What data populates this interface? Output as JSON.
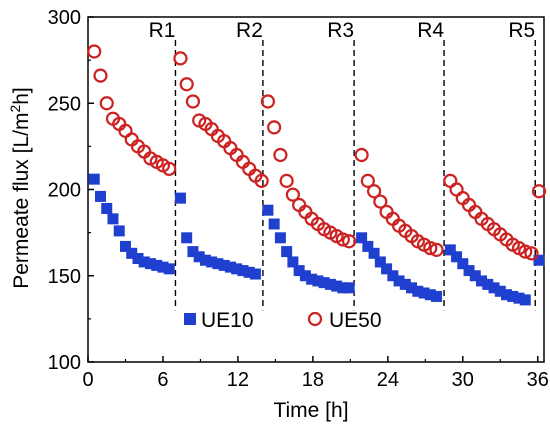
{
  "chart_data": {
    "type": "scatter",
    "xlabel": "Time [h]",
    "ylabel": "Permeate flux [L/m²h]",
    "ylabel_parts": {
      "main": "Permeate flux [L/m",
      "sup": "2",
      "tail": "h]"
    },
    "xlim": [
      0,
      36.5
    ],
    "ylim": [
      100,
      300
    ],
    "xticks": [
      0,
      6,
      12,
      18,
      24,
      30,
      36
    ],
    "yticks": [
      100,
      150,
      200,
      250,
      300
    ],
    "grid": false,
    "legend_position": "bottom-center",
    "run_markers": [
      {
        "label": "R1",
        "x": 7.0
      },
      {
        "label": "R2",
        "x": 14.0
      },
      {
        "label": "R3",
        "x": 21.3
      },
      {
        "label": "R4",
        "x": 28.5
      },
      {
        "label": "R5",
        "x": 35.8
      }
    ],
    "series": [
      {
        "name": "UE10",
        "marker": "filled-square",
        "color": "#1f3fcf",
        "points": [
          [
            0.5,
            206
          ],
          [
            1.0,
            196
          ],
          [
            1.5,
            189
          ],
          [
            2.0,
            183
          ],
          [
            2.5,
            176
          ],
          [
            3.0,
            167
          ],
          [
            3.5,
            163
          ],
          [
            4.0,
            160
          ],
          [
            4.5,
            158
          ],
          [
            5.0,
            157
          ],
          [
            5.5,
            156
          ],
          [
            6.0,
            155
          ],
          [
            6.5,
            154
          ],
          [
            7.4,
            195
          ],
          [
            7.9,
            172
          ],
          [
            8.4,
            164
          ],
          [
            8.9,
            161
          ],
          [
            9.4,
            159
          ],
          [
            9.9,
            158
          ],
          [
            10.4,
            157
          ],
          [
            10.9,
            156
          ],
          [
            11.4,
            155
          ],
          [
            11.9,
            154
          ],
          [
            12.4,
            153
          ],
          [
            12.9,
            152
          ],
          [
            13.4,
            151
          ],
          [
            14.4,
            188
          ],
          [
            14.9,
            180
          ],
          [
            15.4,
            172
          ],
          [
            15.9,
            164
          ],
          [
            16.4,
            158
          ],
          [
            16.9,
            153
          ],
          [
            17.4,
            150
          ],
          [
            17.9,
            148
          ],
          [
            18.4,
            147
          ],
          [
            18.9,
            146
          ],
          [
            19.4,
            145
          ],
          [
            19.9,
            144
          ],
          [
            20.4,
            143
          ],
          [
            20.9,
            143
          ],
          [
            21.9,
            172
          ],
          [
            22.4,
            167
          ],
          [
            22.9,
            163
          ],
          [
            23.4,
            158
          ],
          [
            23.9,
            154
          ],
          [
            24.4,
            150
          ],
          [
            24.9,
            147
          ],
          [
            25.4,
            145
          ],
          [
            25.9,
            143
          ],
          [
            26.4,
            141
          ],
          [
            26.9,
            140
          ],
          [
            27.4,
            139
          ],
          [
            27.9,
            138
          ],
          [
            29.0,
            165
          ],
          [
            29.5,
            161
          ],
          [
            30.0,
            157
          ],
          [
            30.5,
            153
          ],
          [
            31.0,
            150
          ],
          [
            31.5,
            147
          ],
          [
            32.0,
            145
          ],
          [
            32.5,
            143
          ],
          [
            33.0,
            141
          ],
          [
            33.5,
            139
          ],
          [
            34.0,
            138
          ],
          [
            34.5,
            137
          ],
          [
            35.0,
            136
          ],
          [
            36.1,
            159
          ]
        ]
      },
      {
        "name": "UE50",
        "marker": "open-circle",
        "color": "#cc2222",
        "points": [
          [
            0.5,
            280
          ],
          [
            1.0,
            266
          ],
          [
            1.5,
            250
          ],
          [
            2.0,
            241
          ],
          [
            2.5,
            238
          ],
          [
            3.0,
            234
          ],
          [
            3.5,
            229
          ],
          [
            4.0,
            225
          ],
          [
            4.5,
            222
          ],
          [
            5.0,
            218
          ],
          [
            5.5,
            216
          ],
          [
            6.0,
            214
          ],
          [
            6.5,
            212
          ],
          [
            7.4,
            276
          ],
          [
            7.9,
            261
          ],
          [
            8.4,
            251
          ],
          [
            8.9,
            240
          ],
          [
            9.4,
            238
          ],
          [
            9.9,
            235
          ],
          [
            10.4,
            231
          ],
          [
            10.9,
            228
          ],
          [
            11.4,
            224
          ],
          [
            11.9,
            220
          ],
          [
            12.4,
            216
          ],
          [
            12.9,
            212
          ],
          [
            13.4,
            208
          ],
          [
            13.9,
            205
          ],
          [
            14.4,
            251
          ],
          [
            14.9,
            236
          ],
          [
            15.4,
            220
          ],
          [
            15.9,
            205
          ],
          [
            16.4,
            197
          ],
          [
            16.9,
            191
          ],
          [
            17.4,
            187
          ],
          [
            17.9,
            183
          ],
          [
            18.4,
            180
          ],
          [
            18.9,
            177
          ],
          [
            19.4,
            175
          ],
          [
            19.9,
            173
          ],
          [
            20.4,
            171
          ],
          [
            20.9,
            170
          ],
          [
            21.9,
            220
          ],
          [
            22.4,
            205
          ],
          [
            22.9,
            199
          ],
          [
            23.4,
            193
          ],
          [
            23.9,
            187
          ],
          [
            24.4,
            183
          ],
          [
            24.9,
            179
          ],
          [
            25.4,
            176
          ],
          [
            25.9,
            173
          ],
          [
            26.4,
            170
          ],
          [
            26.9,
            168
          ],
          [
            27.4,
            166
          ],
          [
            27.9,
            165
          ],
          [
            29.0,
            205
          ],
          [
            29.5,
            200
          ],
          [
            30.0,
            195
          ],
          [
            30.5,
            191
          ],
          [
            31.0,
            187
          ],
          [
            31.5,
            183
          ],
          [
            32.0,
            180
          ],
          [
            32.5,
            177
          ],
          [
            33.0,
            174
          ],
          [
            33.5,
            171
          ],
          [
            34.0,
            168
          ],
          [
            34.5,
            166
          ],
          [
            35.0,
            164
          ],
          [
            35.5,
            163
          ],
          [
            36.1,
            199
          ]
        ]
      }
    ]
  }
}
